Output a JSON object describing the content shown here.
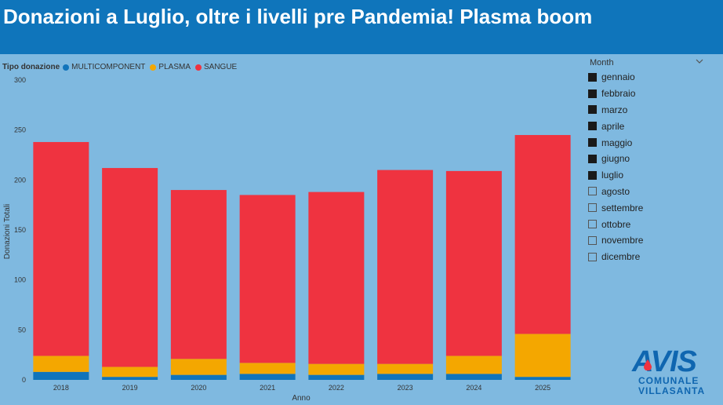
{
  "header": {
    "title": "Donazioni a Luglio, oltre i livelli pre Pandemia! Plasma boom"
  },
  "legend": {
    "title": "Tipo donazione",
    "items": [
      {
        "label": "MULTICOMPONENT",
        "color": "#1174bb"
      },
      {
        "label": "PLASMA",
        "color": "#f4a700"
      },
      {
        "label": "SANGUE",
        "color": "#ef3340"
      }
    ]
  },
  "slicer": {
    "title": "Month",
    "chevron_icon": "chevron-down-icon",
    "items": [
      {
        "label": "gennaio",
        "checked": true
      },
      {
        "label": "febbraio",
        "checked": true
      },
      {
        "label": "marzo",
        "checked": true
      },
      {
        "label": "aprile",
        "checked": true
      },
      {
        "label": "maggio",
        "checked": true
      },
      {
        "label": "giugno",
        "checked": true
      },
      {
        "label": "luglio",
        "checked": true
      },
      {
        "label": "agosto",
        "checked": false
      },
      {
        "label": "settembre",
        "checked": false
      },
      {
        "label": "ottobre",
        "checked": false
      },
      {
        "label": "novembre",
        "checked": false
      },
      {
        "label": "dicembre",
        "checked": false
      }
    ]
  },
  "logo": {
    "word": "AVIS",
    "line1": "COMUNALE",
    "line2": "VILLASANTA"
  },
  "chart_data": {
    "type": "bar",
    "stacked": true,
    "xlabel": "Anno",
    "ylabel": "Donazioni Totali",
    "ylim": [
      0,
      300
    ],
    "yticks": [
      0,
      50,
      100,
      150,
      200,
      250,
      300
    ],
    "categories": [
      "2018",
      "2019",
      "2020",
      "2021",
      "2022",
      "2023",
      "2024",
      "2025"
    ],
    "legend_position": "top-left",
    "grid": false,
    "series": [
      {
        "name": "MULTICOMPONENT",
        "color": "#1174bb",
        "values": [
          8,
          3,
          5,
          6,
          5,
          6,
          6,
          3
        ]
      },
      {
        "name": "PLASMA",
        "color": "#f4a700",
        "values": [
          16,
          10,
          16,
          11,
          11,
          10,
          18,
          43
        ]
      },
      {
        "name": "SANGUE",
        "color": "#ef3340",
        "values": [
          214,
          199,
          169,
          168,
          172,
          194,
          185,
          199
        ]
      }
    ]
  }
}
